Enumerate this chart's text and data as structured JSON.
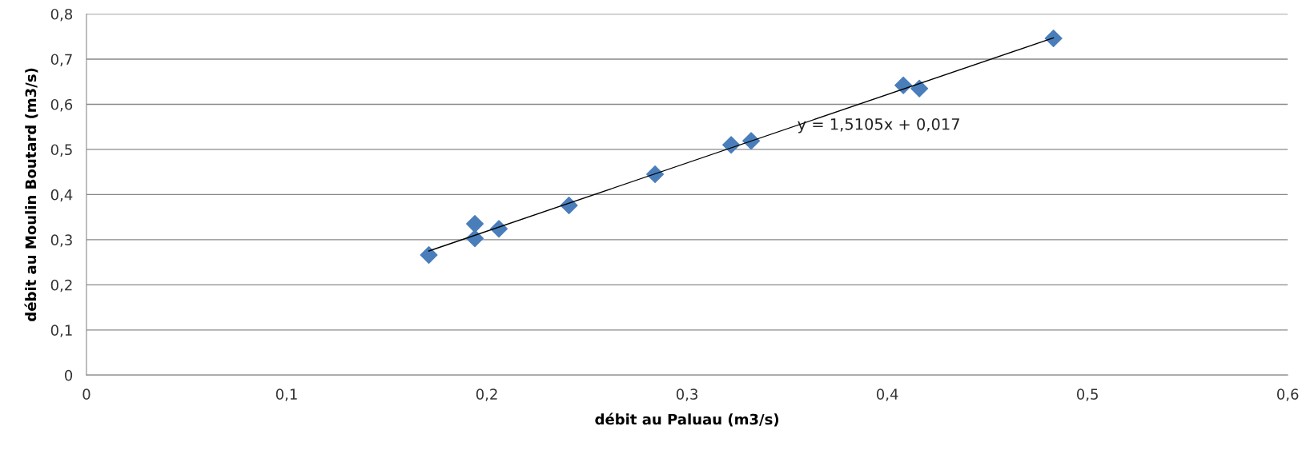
{
  "chart_data": {
    "type": "scatter",
    "xlabel": "débit au Paluau (m3/s)",
    "ylabel": "débit au Moulin Boutard (m3/s)",
    "xlim": [
      0,
      0.6
    ],
    "xticks": [
      {
        "value": 0,
        "label": "0"
      },
      {
        "value": 0.1,
        "label": "0,1"
      },
      {
        "value": 0.2,
        "label": "0,2"
      },
      {
        "value": 0.3,
        "label": "0,3"
      },
      {
        "value": 0.4,
        "label": "0,4"
      },
      {
        "value": 0.5,
        "label": "0,5"
      },
      {
        "value": 0.6,
        "label": "0,6"
      }
    ],
    "ylim": [
      0,
      0.8
    ],
    "yticks": [
      {
        "value": 0,
        "label": "0"
      },
      {
        "value": 0.1,
        "label": "0,1"
      },
      {
        "value": 0.2,
        "label": "0,2"
      },
      {
        "value": 0.3,
        "label": "0,3"
      },
      {
        "value": 0.4,
        "label": "0,4"
      },
      {
        "value": 0.5,
        "label": "0,5"
      },
      {
        "value": 0.6,
        "label": "0,6"
      },
      {
        "value": 0.7,
        "label": "0,7"
      },
      {
        "value": 0.8,
        "label": "0,8"
      }
    ],
    "grid": "y",
    "marker": "diamond",
    "series": [
      {
        "color": "#4a7ebb",
        "x": [
          0.171,
          0.194,
          0.194,
          0.206,
          0.241,
          0.284,
          0.322,
          0.332,
          0.408,
          0.416,
          0.483
        ],
        "values": [
          0.266,
          0.335,
          0.303,
          0.324,
          0.376,
          0.445,
          0.51,
          0.519,
          0.642,
          0.635,
          0.746
        ]
      },
      {
        "type": "line",
        "color": "#000000",
        "marker": "none",
        "line_style": "solid",
        "x": [
          0.171,
          0.483
        ],
        "values": [
          0.275,
          0.747
        ]
      }
    ],
    "annotations": [
      {
        "text": "y = 1,5105x + 0,017",
        "x": 0.355,
        "y": 0.553
      }
    ]
  }
}
